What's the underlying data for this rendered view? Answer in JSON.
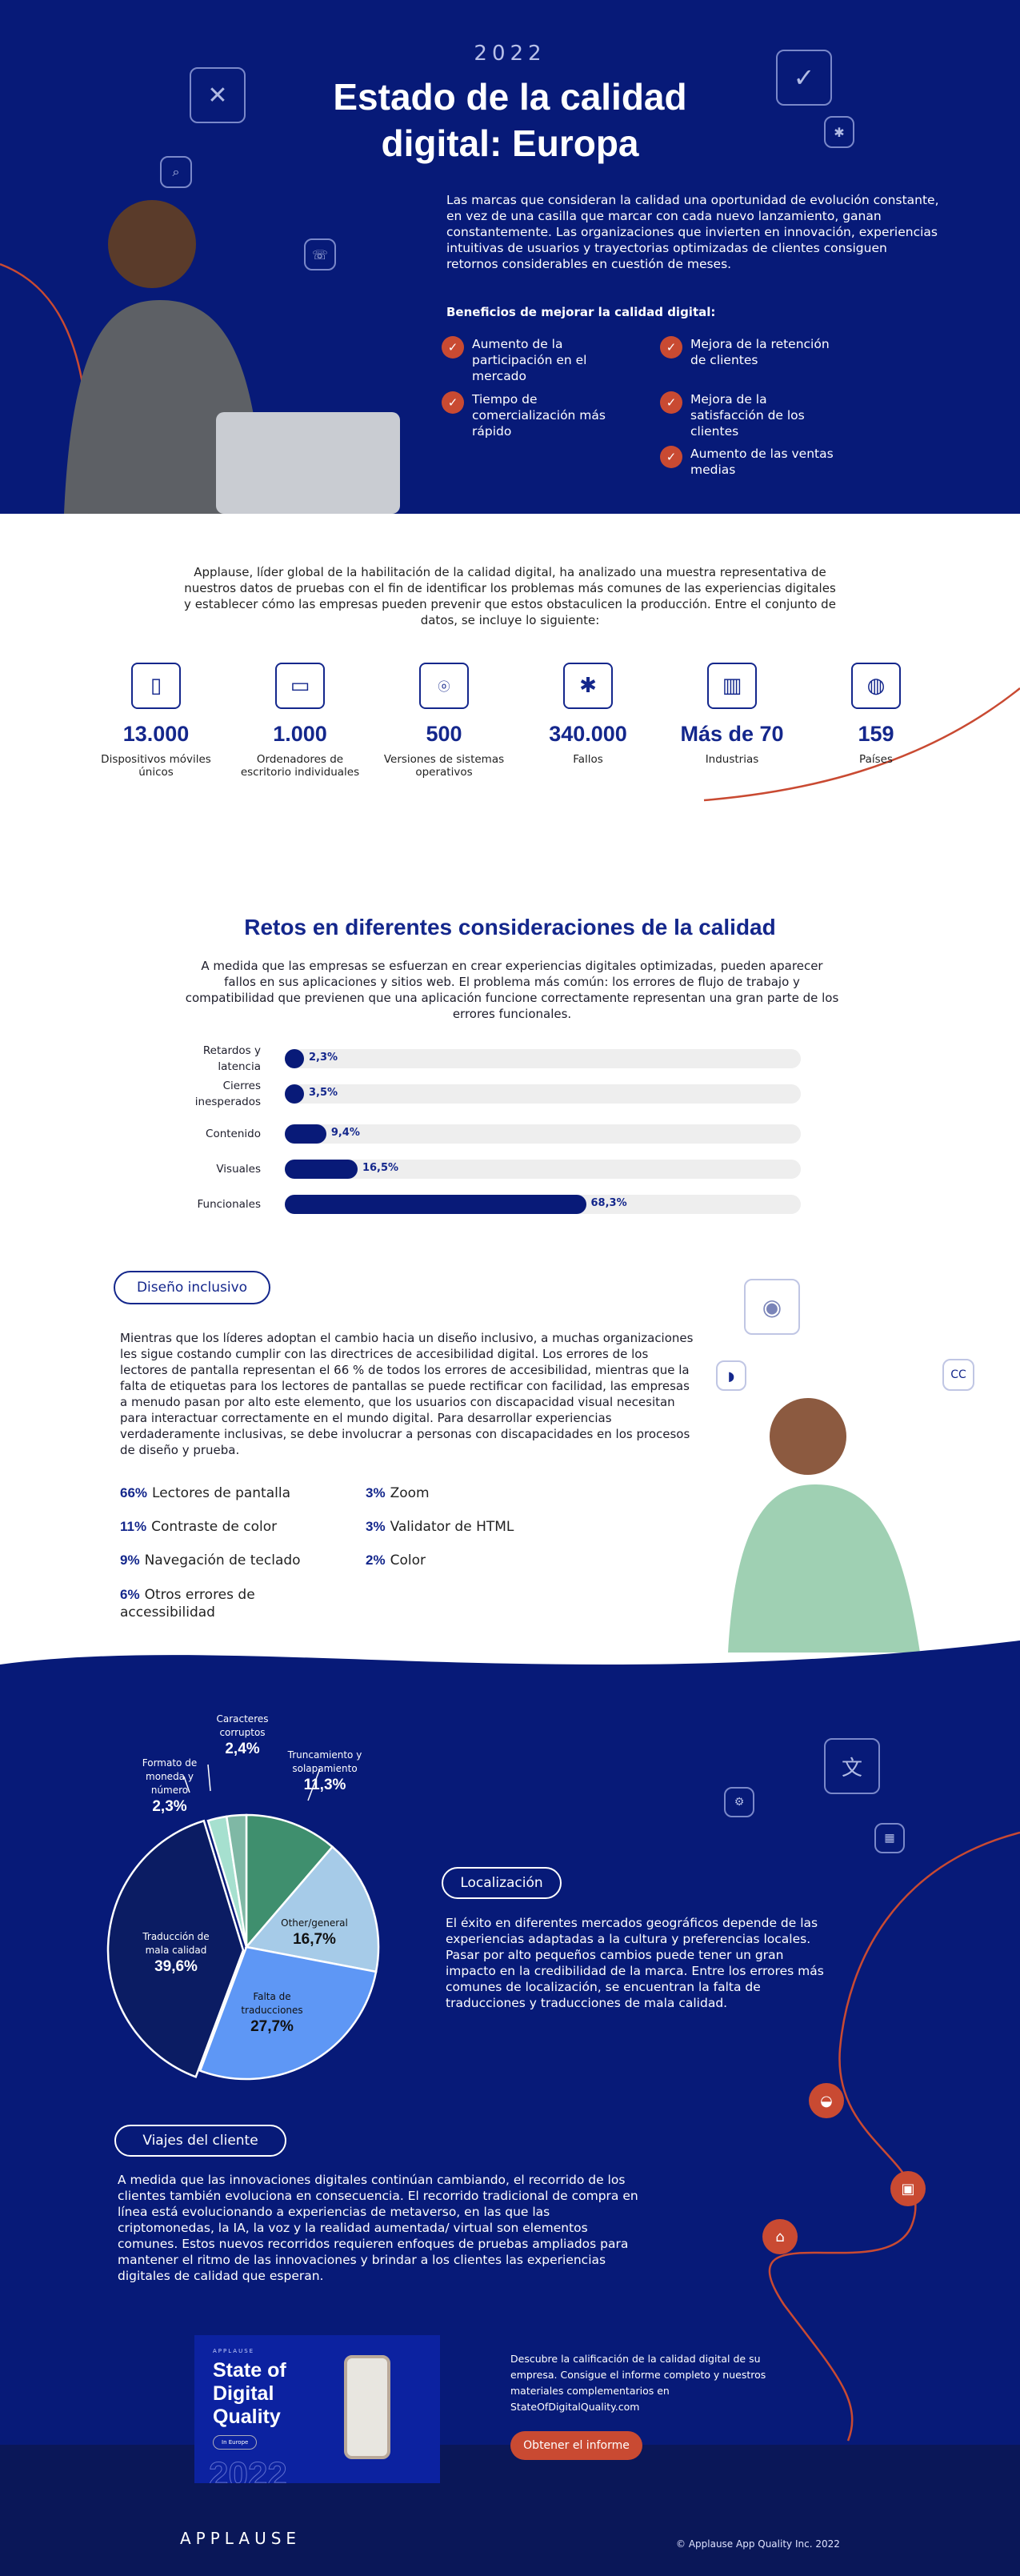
{
  "colors": {
    "navy": "#071a78",
    "accent": "#c94a32",
    "footer": "#0a1758",
    "bar": "#081a78"
  },
  "hero": {
    "year": "2022",
    "title": "Estado de la calidad digital: Europa",
    "intro": "Las marcas que consideran la calidad una oportunidad de evolución constante, en vez de una casilla que marcar con cada nuevo lanzamiento, ganan constantemente. Las organizaciones que invierten en innovación, experiencias intuitivas de usuarios y trayectorias optimizadas de clientes consiguen retornos considerables en cuestión de meses.",
    "benefits_heading": "Beneficios de mejorar la calidad digital:",
    "benefits": [
      "Aumento de la participación en el mercado",
      "Tiempo de comercialización más rápido",
      "Mejora de la retención de clientes",
      "Mejora de la satisfacción de los clientes",
      "Aumento de las ventas medias"
    ],
    "icons": [
      "wrench-screwdriver-icon",
      "search-icon",
      "chat-icon",
      "checkmark-icon",
      "bug-icon"
    ]
  },
  "dataset": {
    "intro": "Applause, líder global de la habilitación de la calidad digital, ha analizado una muestra representativa de nuestros datos de pruebas con el fin de identificar los problemas más comunes de las experiencias digitales y establecer cómo las empresas pueden prevenir que estos obstaculicen la producción. Entre el conjunto de datos, se incluye lo siguiente:",
    "stats": [
      {
        "icon": "smartphone-icon",
        "value": "13.000",
        "label": "Dispositivos móviles únicos"
      },
      {
        "icon": "desktop-icon",
        "value": "1.000",
        "label": "Ordenadores de escritorio individuales"
      },
      {
        "icon": "os-icon",
        "value": "500",
        "label": "Versiones de sistemas operativos"
      },
      {
        "icon": "bug-icon",
        "value": "340.000",
        "label": "Fallos"
      },
      {
        "icon": "buildings-icon",
        "value": "Más de 70",
        "label": "Industrias"
      },
      {
        "icon": "globe-icon",
        "value": "159",
        "label": "Países"
      }
    ]
  },
  "challenges": {
    "title": "Retos en diferentes consideraciones de la calidad",
    "text": "A medida que las empresas se esfuerzan en crear experiencias digitales optimizadas, pueden aparecer fallos en sus aplicaciones y sitios web. El problema más común: los errores de flujo de trabajo y compatibilidad que previenen que una aplicación funcione correctamente representan una gran parte de los errores funcionales."
  },
  "inclusive": {
    "tag": "Diseño inclusivo",
    "text": "Mientras que los líderes adoptan el cambio hacia un diseño inclusivo, a muchas organizaciones les sigue costando cumplir con las directrices de accesibilidad digital. Los errores de los lectores de pantalla representan el 66 % de todos los errores de accesibilidad, mientras que la falta de etiquetas para los lectores de pantallas se puede rectificar con facilidad, las empresas a menudo pasan por alto este elemento, que los usuarios con discapacidad visual necesitan para interactuar correctamente en el mundo digital. Para desarrollar experiencias verdaderamente inclusivas, se debe involucrar a personas con discapacidades en los procesos de diseño y prueba.",
    "stats": [
      {
        "pct": "66%",
        "label": "Lectores de pantalla"
      },
      {
        "pct": "11%",
        "label": "Contraste de color"
      },
      {
        "pct": "9%",
        "label": "Navegación de teclado"
      },
      {
        "pct": "6%",
        "label": "Otros errores de accessibilidad"
      },
      {
        "pct": "3%",
        "label": "Zoom"
      },
      {
        "pct": "3%",
        "label": "Validator de HTML"
      },
      {
        "pct": "2%",
        "label": "Color"
      }
    ],
    "icons": [
      "eye-icon",
      "hearing-icon",
      "closed-captions-icon"
    ],
    "cc": "CC"
  },
  "localization": {
    "tag": "Localización",
    "text": "El éxito en diferentes mercados geográficos depende de las experiencias adaptadas a la cultura y preferencias locales. Pasar por alto pequeños cambios puede tener un gran impacto en la credibilidad de la marca. Entre los errores más comunes de localización, se encuentran la falta de traducciones y traducciones de mala calidad."
  },
  "journeys": {
    "tag": "Viajes del cliente",
    "text": "A medida que las innovaciones digitales continúan cambiando, el recorrido de los clientes también evoluciona en consecuencia. El recorrido tradicional de compra en línea está evolucionando a experiencias de metaverso, en las que las criptomonedas, la IA, la voz y la realidad aumentada/ virtual son elementos comunes. Estos nuevos recorridos requieren enfoques de pruebas ampliados para mantener el ritmo de las innovaciones y brindar a los clientes las experiencias digitales de calidad que esperan."
  },
  "report": {
    "cover_brand": "APPLAUSE",
    "cover_title": "State of Digital Quality",
    "cover_tag": "In Europe",
    "cover_year": "2022",
    "text": "Descubre la calificación de la calidad digital de su empresa. Consigue el informe completo y nuestros materiales complementarios en StateOfDigitalQuality.com",
    "button": "Obtener el informe"
  },
  "footer": {
    "logo": "APPLAUSE",
    "copyright": "© Applause App Quality Inc. 2022"
  },
  "chart_data": [
    {
      "type": "bar",
      "orientation": "horizontal",
      "categories": [
        "Retardos y latencia",
        "Cierres inesperados",
        "Contenido",
        "Visuales",
        "Funcionales"
      ],
      "values": [
        2.3,
        3.5,
        9.4,
        16.5,
        68.3
      ],
      "value_labels": [
        "2,3%",
        "3,5%",
        "9,4%",
        "16,5%",
        "68,3%"
      ]
    },
    {
      "type": "pie",
      "categories": [
        "Truncamiento y solapamiento",
        "Other/general",
        "Falta de traducciones",
        "Traducción de mala calidad",
        "Formato de moneda y número",
        "Caracteres corruptos"
      ],
      "values": [
        11.3,
        16.7,
        27.7,
        39.6,
        2.3,
        2.4
      ],
      "value_labels": [
        "11,3%",
        "16,7%",
        "27,7%",
        "39,6%",
        "2,3%",
        "2,4%"
      ],
      "colors": [
        "#3f8f6e",
        "#a6cbe8",
        "#5e97f5",
        "#0b1c63",
        "#a6e0cf",
        "#7fb8a5"
      ]
    }
  ]
}
